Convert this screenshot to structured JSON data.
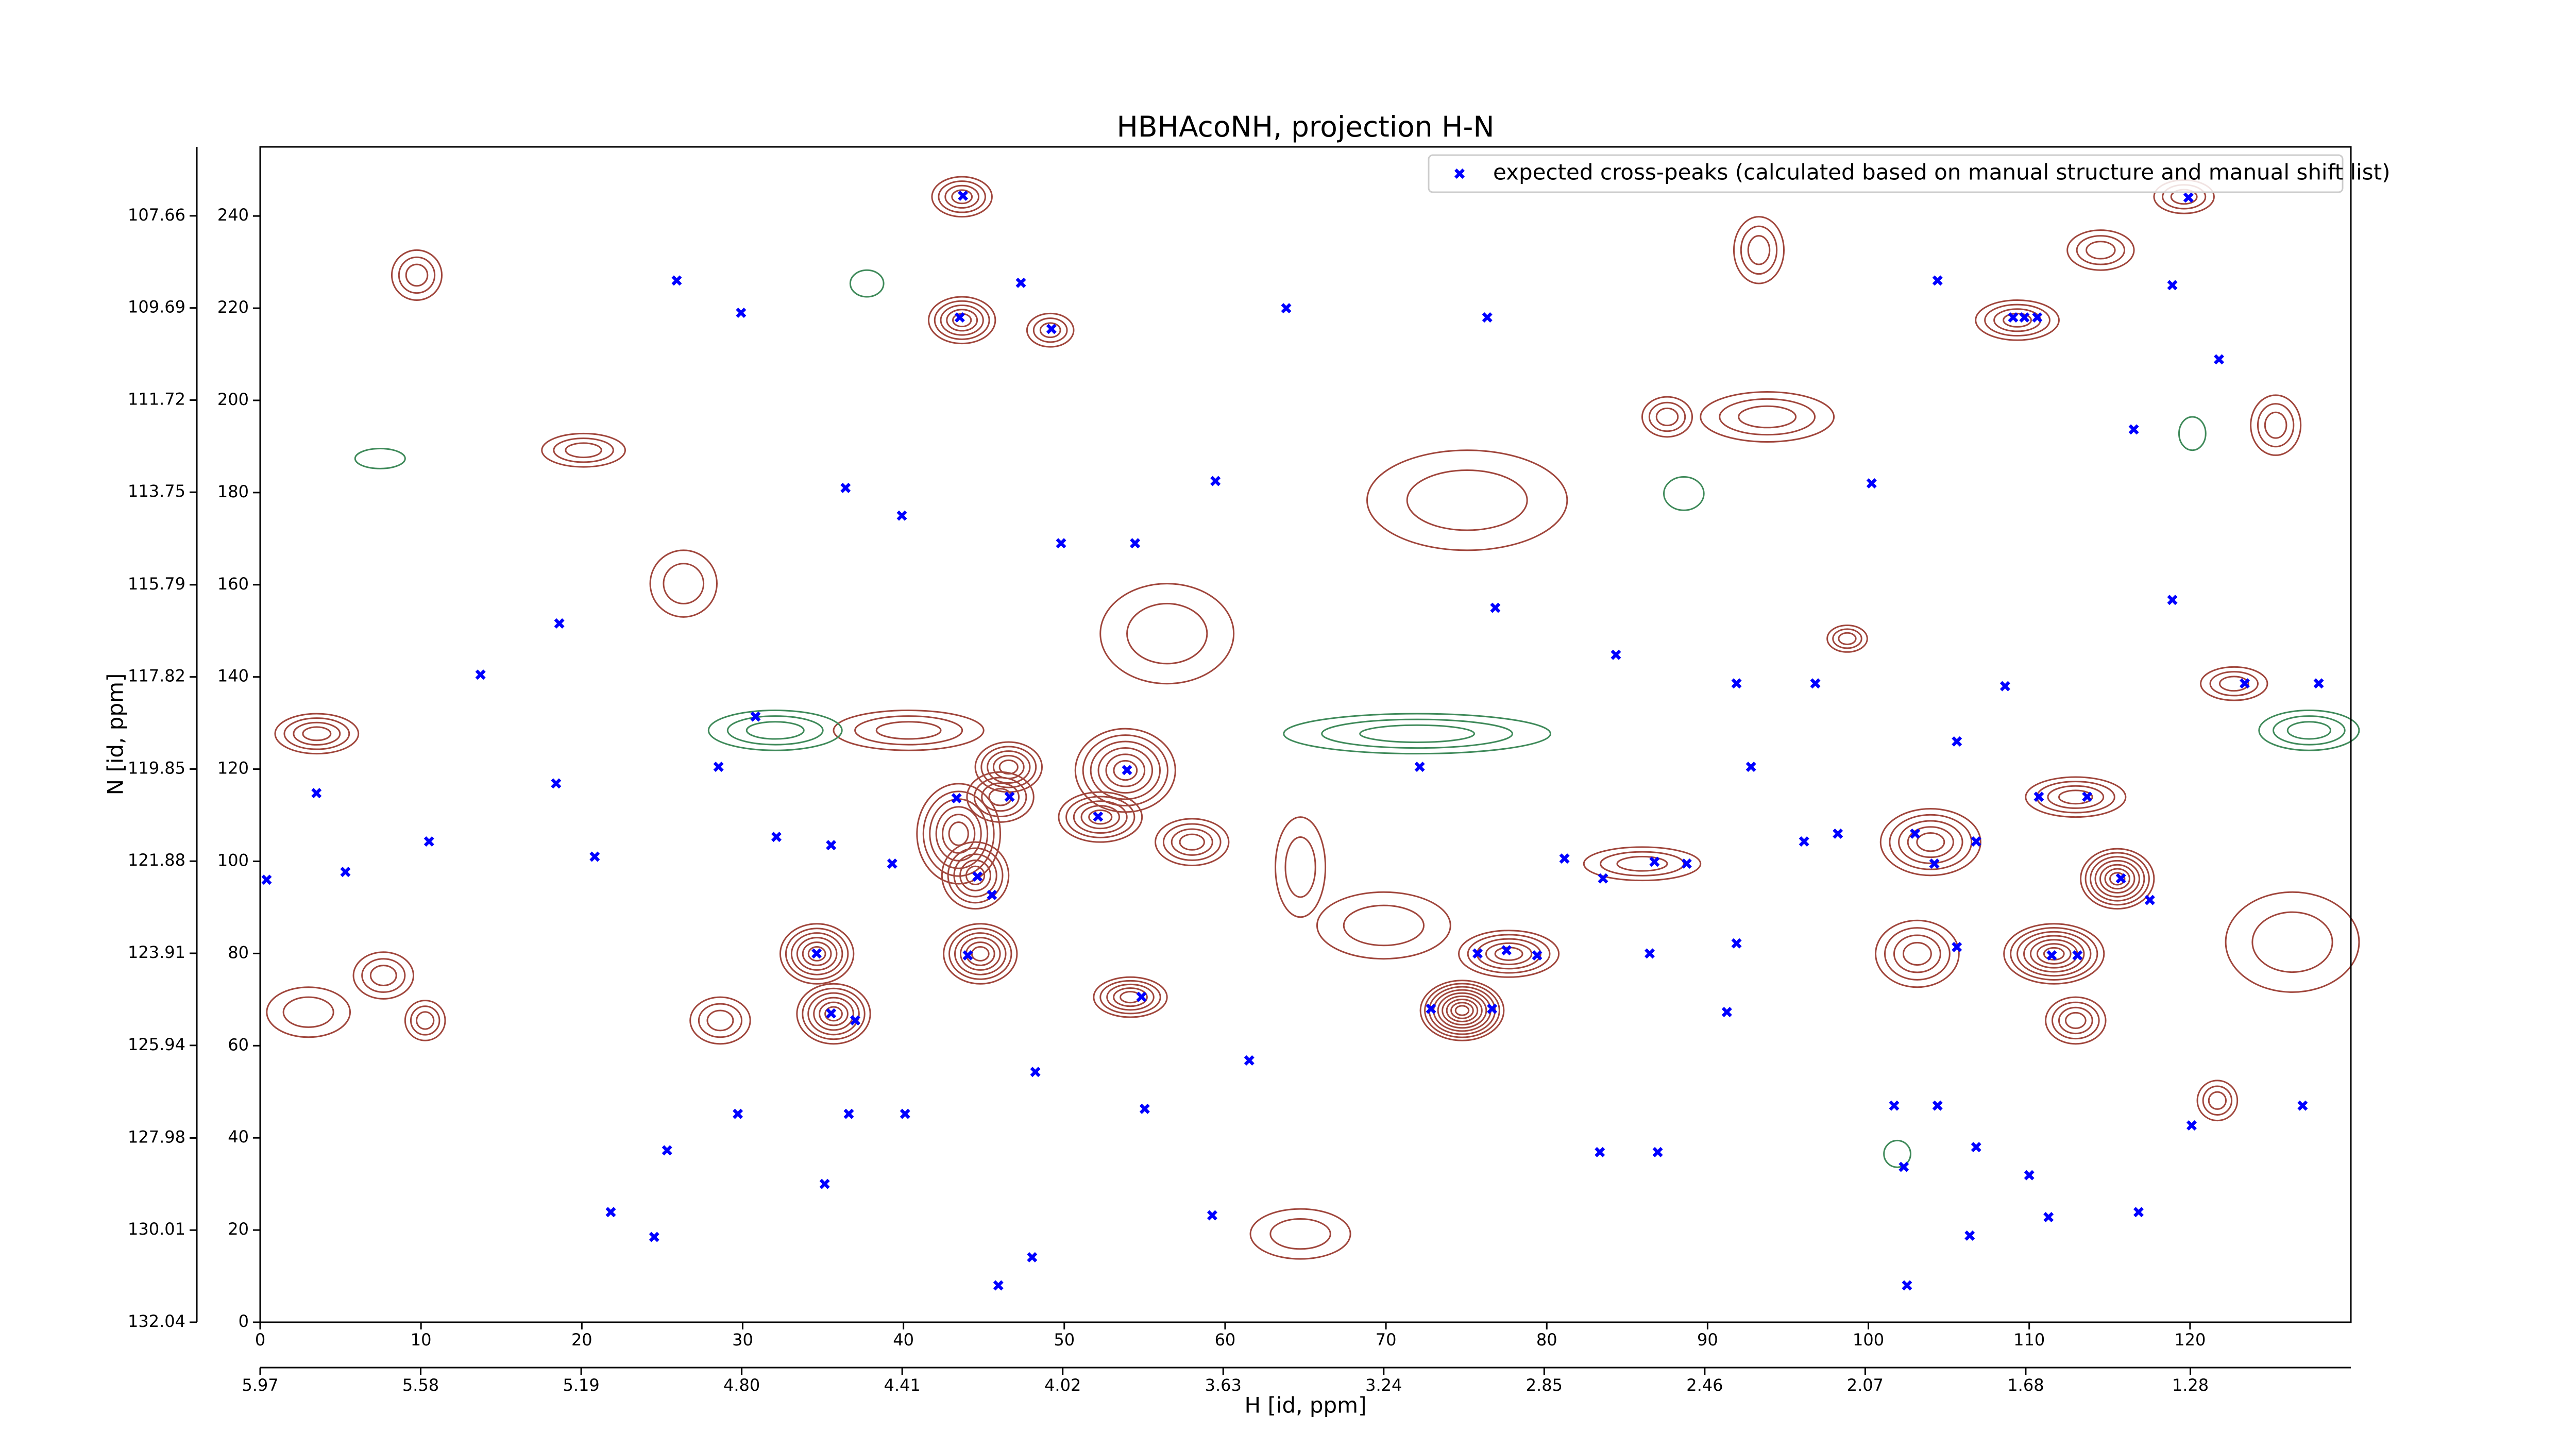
{
  "chart_data": {
    "type": "scatter",
    "title": "HBHAcoNH, projection H-N",
    "xlabel": "H [id, ppm]",
    "ylabel": "N [id, ppm]",
    "xlim": [
      0,
      130
    ],
    "xticks": [
      0,
      10,
      20,
      30,
      40,
      50,
      60,
      70,
      80,
      90,
      100,
      110,
      120
    ],
    "x2lim": [
      5.97,
      0.89
    ],
    "x2ticks": [
      5.97,
      5.58,
      5.19,
      {
        "value": 4.8,
        "label": "4.80"
      },
      4.41,
      4.02,
      3.63,
      3.24,
      2.85,
      2.46,
      2.07,
      1.68,
      1.28
    ],
    "ylim": [
      0,
      255
    ],
    "yticks": [
      0,
      20,
      40,
      60,
      80,
      100,
      120,
      140,
      160,
      180,
      200,
      220,
      240
    ],
    "y2lim": [
      132.04,
      106.14
    ],
    "y2ticks": [
      132.04,
      130.01,
      127.98,
      125.94,
      123.91,
      121.88,
      119.85,
      117.82,
      115.79,
      113.75,
      111.72,
      109.69,
      107.66
    ],
    "legend": "upper right",
    "series": [
      {
        "name": "expected cross-peaks (calculated based on manual structure and manual shift list)",
        "color": "#0000ff",
        "x": [
          43.7,
          43.5,
          49.2,
          47.3,
          25.9,
          29.9,
          119.9,
          109,
          109.7,
          110.5,
          104.3,
          118.9,
          76.3,
          63.8,
          39.9,
          36.4,
          59.4,
          49.8,
          54.4,
          18.6,
          13.7,
          30.8,
          28.5,
          18.4,
          3.5,
          0.4,
          5.3,
          10.5,
          20.8,
          32.1,
          35.5,
          39.3,
          53.9,
          52.1,
          46.6,
          43.3,
          44.6,
          45.5,
          34.6,
          44,
          54.8,
          35.5,
          37,
          61.5,
          48.2,
          55,
          36.6,
          29.7,
          40.1,
          25.3,
          35.1,
          24.5,
          21.8,
          45.9,
          48,
          59.2,
          75.7,
          77.5,
          79.4,
          72.8,
          76.6,
          81.1,
          83.5,
          86.7,
          88.7,
          86.4,
          83.3,
          86.9,
          91.2,
          91.8,
          96,
          98.1,
          102.9,
          104.1,
          106.7,
          105.5,
          111.4,
          113,
          115.7,
          117.5,
          110.6,
          113.6,
          123.4,
          128,
          100.2,
          102.2,
          106.7,
          110,
          111.2,
          116.8,
          120.1,
          127,
          102.4,
          106.3,
          104.3,
          101.6,
          92.7,
          96.7,
          105.5,
          108.5,
          118.9,
          116.5,
          121.8,
          72.1,
          76.8,
          84.3,
          91.8
        ],
        "values": [
          244.4,
          218,
          215.5,
          225.5,
          226,
          219,
          244,
          218,
          218,
          218,
          226,
          225,
          218,
          220,
          175,
          181,
          182.5,
          169,
          169,
          151.6,
          140.5,
          131.4,
          120.5,
          116.9,
          114.8,
          96,
          97.7,
          104.3,
          101,
          105.3,
          103.5,
          99.5,
          119.8,
          109.7,
          114,
          113.7,
          96.7,
          92.7,
          80,
          79.6,
          70.6,
          67,
          65.5,
          56.8,
          54.3,
          46.3,
          45.2,
          45.2,
          45.2,
          37.3,
          30,
          18.5,
          23.9,
          8,
          14.1,
          23.2,
          80,
          80.7,
          79.6,
          68,
          68,
          100.6,
          96.3,
          99.9,
          99.5,
          80,
          36.9,
          36.9,
          67.3,
          82.2,
          104.3,
          106,
          106,
          99.5,
          104.3,
          81.4,
          79.6,
          79.6,
          96.3,
          91.6,
          114,
          114,
          138.6,
          138.6,
          182,
          33.7,
          38,
          31.9,
          22.8,
          23.9,
          42.7,
          47,
          8,
          18.8,
          47,
          47,
          120.5,
          138.6,
          126,
          138,
          156.7,
          193.7,
          208.9,
          120.5,
          155,
          144.8,
          138.6
        ]
      }
    ]
  }
}
